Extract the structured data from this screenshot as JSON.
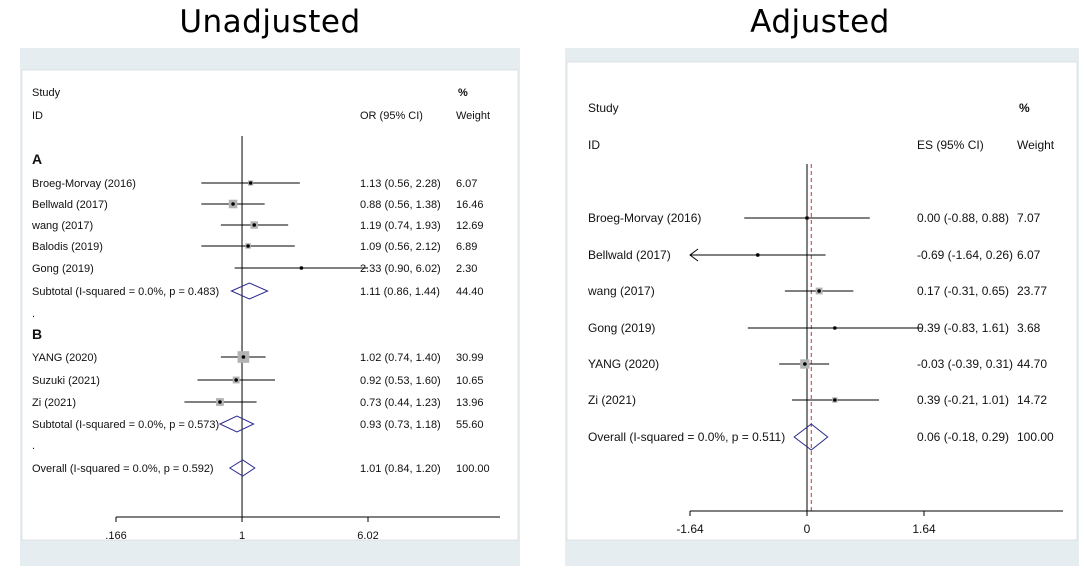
{
  "titles": {
    "left": "Unadjusted",
    "right": "Adjusted"
  },
  "colors": {
    "frame_bg": "#e6edf1",
    "plot_bg": "#ffffff",
    "marker_box": "#b3b3b3",
    "diamond": "#2a2a8c",
    "line": "#000000",
    "null_line": "#000000",
    "overall_dash": "#cc3333"
  },
  "chart_data": [
    {
      "type": "forest",
      "title": "Unadjusted",
      "scale": "log",
      "null_value": 1,
      "xlim": [
        0.166,
        6.02
      ],
      "x_ticks": [
        {
          "value": 0.166,
          "label": ".166"
        },
        {
          "value": 1,
          "label": "1"
        },
        {
          "value": 6.02,
          "label": "6.02"
        }
      ],
      "header": {
        "study": "Study",
        "id": "ID",
        "effect": "OR (95% CI)",
        "pct": "%",
        "weight": "Weight"
      },
      "rows": [
        {
          "kind": "group",
          "label": "A"
        },
        {
          "kind": "study",
          "label": "Broeg-Morvay (2016)",
          "est": 1.13,
          "lo": 0.56,
          "hi": 2.28,
          "text": "1.13 (0.56, 2.28)",
          "weight": "6.07",
          "w": 6.07
        },
        {
          "kind": "study",
          "label": "Bellwald (2017)",
          "est": 0.88,
          "lo": 0.56,
          "hi": 1.38,
          "text": "0.88 (0.56, 1.38)",
          "weight": "16.46",
          "w": 16.46
        },
        {
          "kind": "study",
          "label": "wang (2017)",
          "est": 1.19,
          "lo": 0.74,
          "hi": 1.93,
          "text": "1.19 (0.74, 1.93)",
          "weight": "12.69",
          "w": 12.69
        },
        {
          "kind": "study",
          "label": "Balodis (2019)",
          "est": 1.09,
          "lo": 0.56,
          "hi": 2.12,
          "text": "1.09 (0.56, 2.12)",
          "weight": "6.89",
          "w": 6.89
        },
        {
          "kind": "study",
          "label": "Gong (2019)",
          "est": 2.33,
          "lo": 0.9,
          "hi": 6.02,
          "text": "2.33 (0.90, 6.02)",
          "weight": "2.30",
          "w": 2.3
        },
        {
          "kind": "summary",
          "label": "Subtotal  (I-squared = 0.0%, p = 0.483)",
          "est": 1.11,
          "lo": 0.86,
          "hi": 1.44,
          "text": "1.11 (0.86, 1.44)",
          "weight": "44.40"
        },
        {
          "kind": "spacer",
          "label": "."
        },
        {
          "kind": "group",
          "label": "B"
        },
        {
          "kind": "study",
          "label": "YANG (2020)",
          "est": 1.02,
          "lo": 0.74,
          "hi": 1.4,
          "text": "1.02 (0.74, 1.40)",
          "weight": "30.99",
          "w": 30.99
        },
        {
          "kind": "study",
          "label": "Suzuki (2021)",
          "est": 0.92,
          "lo": 0.53,
          "hi": 1.6,
          "text": "0.92 (0.53, 1.60)",
          "weight": "10.65",
          "w": 10.65
        },
        {
          "kind": "study",
          "label": "Zi (2021)",
          "est": 0.73,
          "lo": 0.44,
          "hi": 1.23,
          "text": "0.73 (0.44, 1.23)",
          "weight": "13.96",
          "w": 13.96
        },
        {
          "kind": "summary",
          "label": "Subtotal  (I-squared = 0.0%, p = 0.573)",
          "est": 0.93,
          "lo": 0.73,
          "hi": 1.18,
          "text": "0.93 (0.73, 1.18)",
          "weight": "55.60"
        },
        {
          "kind": "spacer",
          "label": "."
        },
        {
          "kind": "summary",
          "label": "Overall  (I-squared = 0.0%, p = 0.592)",
          "est": 1.01,
          "lo": 0.84,
          "hi": 1.2,
          "text": "1.01 (0.84, 1.20)",
          "weight": "100.00"
        }
      ]
    },
    {
      "type": "forest",
      "title": "Adjusted",
      "scale": "linear",
      "null_value": 0,
      "overall_line": 0.06,
      "xlim": [
        -1.64,
        1.64
      ],
      "x_ticks": [
        {
          "value": -1.64,
          "label": "-1.64"
        },
        {
          "value": 0,
          "label": "0"
        },
        {
          "value": 1.64,
          "label": "1.64"
        }
      ],
      "header": {
        "study": "Study",
        "id": "ID",
        "effect": "ES (95% CI)",
        "pct": "%",
        "weight": "Weight"
      },
      "rows": [
        {
          "kind": "study",
          "label": "Broeg-Morvay (2016)",
          "est": 0.0,
          "lo": -0.88,
          "hi": 0.88,
          "text": "0.00 (-0.88, 0.88)",
          "weight": "7.07",
          "w": 7.07
        },
        {
          "kind": "study",
          "label": "Bellwald (2017)",
          "est": -0.69,
          "lo": -1.64,
          "hi": 0.26,
          "text": "-0.69 (-1.64, 0.26)",
          "weight": "6.07",
          "w": 6.07,
          "lo_arrow": true
        },
        {
          "kind": "study",
          "label": "wang (2017)",
          "est": 0.17,
          "lo": -0.31,
          "hi": 0.65,
          "text": "0.17 (-0.31, 0.65)",
          "weight": "23.77",
          "w": 23.77
        },
        {
          "kind": "study",
          "label": "Gong (2019)",
          "est": 0.39,
          "lo": -0.83,
          "hi": 1.61,
          "text": "0.39 (-0.83, 1.61)",
          "weight": "3.68",
          "w": 3.68
        },
        {
          "kind": "study",
          "label": "YANG (2020)",
          "est": -0.03,
          "lo": -0.39,
          "hi": 0.31,
          "text": "-0.03 (-0.39, 0.31)",
          "weight": "44.70",
          "w": 44.7
        },
        {
          "kind": "study",
          "label": "Zi (2021)",
          "est": 0.39,
          "lo": -0.21,
          "hi": 1.01,
          "text": "0.39 (-0.21, 1.01)",
          "weight": "14.72",
          "w": 14.72
        },
        {
          "kind": "summary",
          "label": "Overall  (I-squared = 0.0%, p = 0.511)",
          "est": 0.06,
          "lo": -0.18,
          "hi": 0.29,
          "text": "0.06 (-0.18, 0.29)",
          "weight": "100.00"
        }
      ]
    }
  ]
}
